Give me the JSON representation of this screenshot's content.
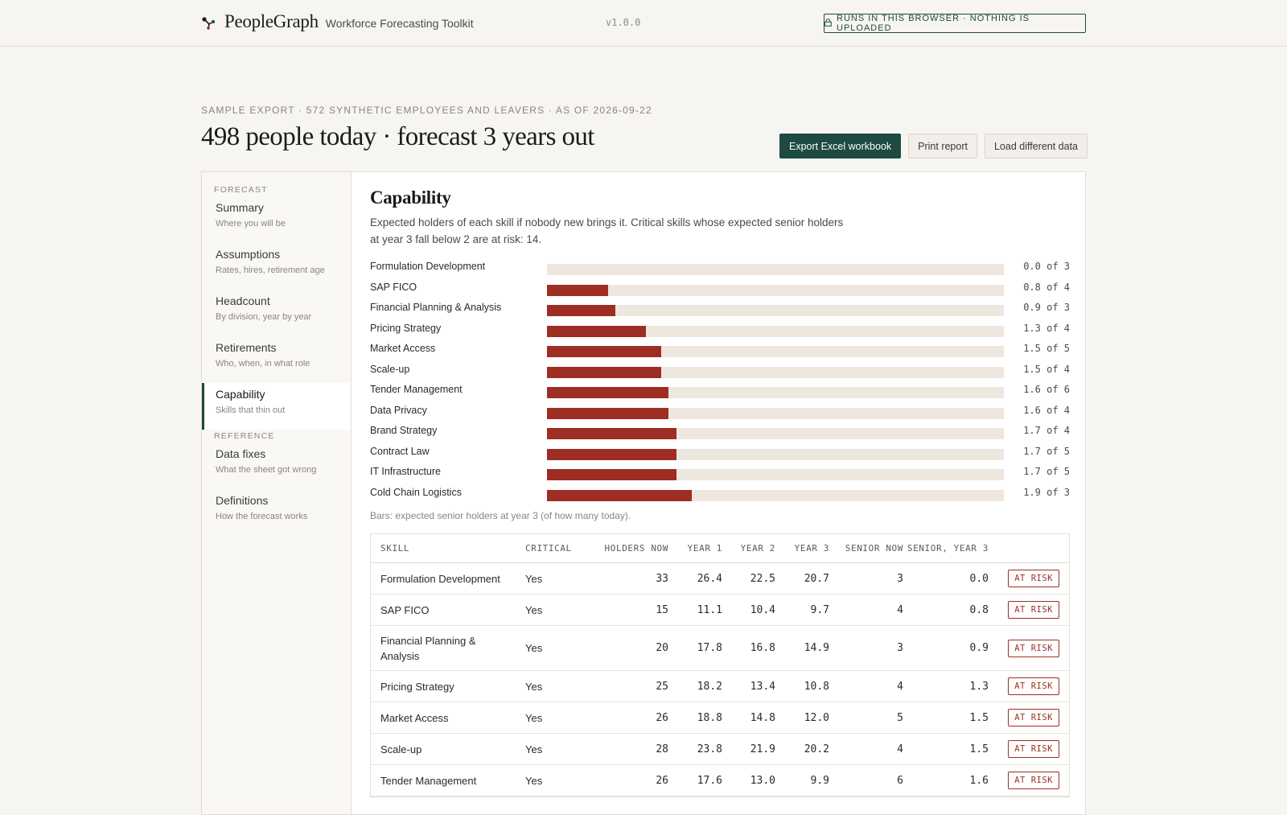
{
  "app": {
    "name": "PeopleGraph",
    "subtitle": "Workforce Forecasting Toolkit",
    "version": "v1.0.0",
    "local_badge": "RUNS IN THIS BROWSER · NOTHING IS UPLOADED"
  },
  "header": {
    "eyebrow": "SAMPLE EXPORT · 572 SYNTHETIC EMPLOYEES AND LEAVERS · AS OF 2026-09-22",
    "title": "498 people today · forecast 3 years out",
    "actions": [
      "Export Excel workbook",
      "Print report",
      "Load different data"
    ]
  },
  "sidebar": {
    "groups": [
      {
        "label": "FORECAST",
        "items": [
          {
            "title": "Summary",
            "sub": "Where you will be"
          },
          {
            "title": "Assumptions",
            "sub": "Rates, hires, retirement age"
          },
          {
            "title": "Headcount",
            "sub": "By division, year by year"
          },
          {
            "title": "Retirements",
            "sub": "Who, when, in what role"
          },
          {
            "title": "Capability",
            "sub": "Skills that thin out"
          }
        ]
      },
      {
        "label": "REFERENCE",
        "items": [
          {
            "title": "Data fixes",
            "sub": "What the sheet got wrong"
          },
          {
            "title": "Definitions",
            "sub": "How the forecast works"
          }
        ]
      }
    ],
    "active": "Capability"
  },
  "capability": {
    "title": "Capability",
    "description": "Expected holders of each skill if nobody new brings it. Critical skills whose expected senior holders at year 3 fall below 2 are at risk: 14.",
    "bar_note": "Bars: expected senior holders at year 3 (of how many today).",
    "accent_color": "#9e2d23",
    "track_color": "#ede7e0"
  },
  "chart_data": {
    "type": "bar",
    "orientation": "horizontal",
    "categories": [
      "Formulation Development",
      "SAP FICO",
      "Financial Planning & Analysis",
      "Pricing Strategy",
      "Market Access",
      "Scale-up",
      "Tender Management",
      "Data Privacy",
      "Brand Strategy",
      "Contract Law",
      "IT Infrastructure",
      "Cold Chain Logistics"
    ],
    "values": [
      0.0,
      0.8,
      0.9,
      1.3,
      1.5,
      1.5,
      1.6,
      1.6,
      1.7,
      1.7,
      1.7,
      1.9
    ],
    "totals": [
      3,
      4,
      3,
      4,
      5,
      4,
      6,
      4,
      4,
      5,
      5,
      3
    ],
    "value_labels": [
      "0.0 of 3",
      "0.8 of 4",
      "0.9 of 3",
      "1.3 of 4",
      "1.5 of 5",
      "1.5 of 4",
      "1.6 of 6",
      "1.6 of 4",
      "1.7 of 4",
      "1.7 of 5",
      "1.7 of 5",
      "1.9 of 3"
    ],
    "xlim": [
      0,
      6
    ]
  },
  "table": {
    "headers": [
      "SKILL",
      "CRITICAL",
      "HOLDERS NOW",
      "YEAR 1",
      "YEAR 2",
      "YEAR 3",
      "SENIOR NOW",
      "SENIOR, YEAR 3",
      ""
    ],
    "rows": [
      [
        "Formulation Development",
        "Yes",
        "33",
        "26.4",
        "22.5",
        "20.7",
        "3",
        "0.0",
        "AT RISK"
      ],
      [
        "SAP FICO",
        "Yes",
        "15",
        "11.1",
        "10.4",
        "9.7",
        "4",
        "0.8",
        "AT RISK"
      ],
      [
        "Financial Planning & Analysis",
        "Yes",
        "20",
        "17.8",
        "16.8",
        "14.9",
        "3",
        "0.9",
        "AT RISK"
      ],
      [
        "Pricing Strategy",
        "Yes",
        "25",
        "18.2",
        "13.4",
        "10.8",
        "4",
        "1.3",
        "AT RISK"
      ],
      [
        "Market Access",
        "Yes",
        "26",
        "18.8",
        "14.8",
        "12.0",
        "5",
        "1.5",
        "AT RISK"
      ],
      [
        "Scale-up",
        "Yes",
        "28",
        "23.8",
        "21.9",
        "20.2",
        "4",
        "1.5",
        "AT RISK"
      ],
      [
        "Tender Management",
        "Yes",
        "26",
        "17.6",
        "13.0",
        "9.9",
        "6",
        "1.6",
        "AT RISK"
      ]
    ]
  }
}
